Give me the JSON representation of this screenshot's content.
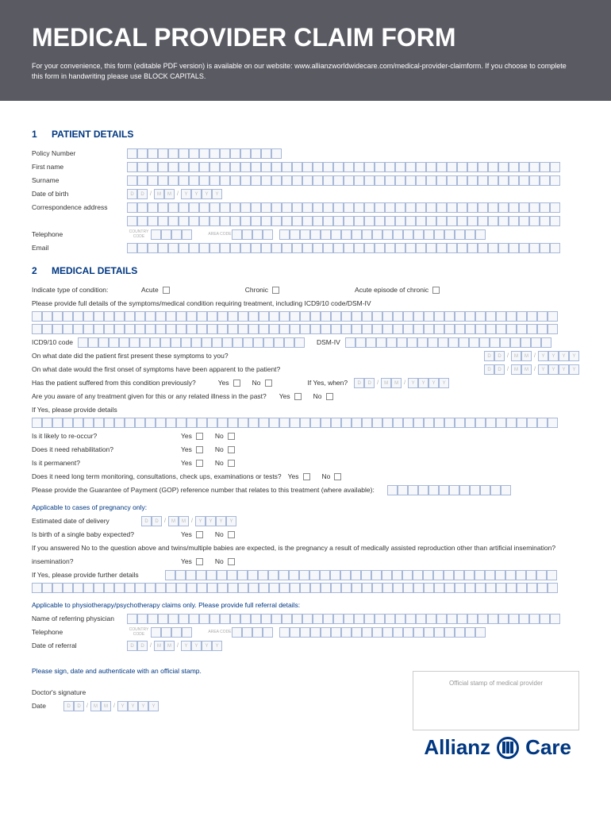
{
  "header": {
    "title": "MEDICAL PROVIDER CLAIM FORM",
    "subtitle": "For your convenience, this form (editable PDF version) is available on our website: www.allianzworldwidecare.com/medical-provider-claimform. If you choose to complete this form in handwriting please use BLOCK CAPITALS."
  },
  "colors": {
    "header_bg": "#5a5a63",
    "brand": "#003781",
    "box_border": "#a8b8d8",
    "box_bg": "#f5f7fb"
  },
  "section1": {
    "num": "1",
    "title": "PATIENT DETAILS",
    "policy_number": "Policy Number",
    "first_name": "First name",
    "surname": "Surname",
    "dob": "Date of birth",
    "address": "Correspondence address",
    "telephone": "Telephone",
    "country_code": "COUNTRY CODE",
    "area_code": "AREA CODE",
    "email": "Email"
  },
  "section2": {
    "num": "2",
    "title": "MEDICAL DETAILS",
    "condition_type": "Indicate type of condition:",
    "acute": "Acute",
    "chronic": "Chronic",
    "acute_chronic": "Acute episode of chronic",
    "symptoms_detail": "Please provide full details of the symptoms/medical condition requiring treatment, including ICD9/10 code/DSM-IV",
    "icd_code": "ICD9/10 code",
    "dsm": "DSM-IV",
    "first_present": "On what date did the patient first present these symptoms to you?",
    "first_onset": "On what date would the first onset of symptoms have been apparent to the patient?",
    "suffered_prev": "Has the patient suffered from this condition previously?",
    "if_yes_when": "If Yes, when?",
    "aware_treatment": "Are you aware of any treatment given for this or any related illness in the past?",
    "if_yes_details": "If Yes, please provide details",
    "reoccur": "Is it likely to re-occur?",
    "rehab": "Does it need rehabilitation?",
    "permanent": "Is it permanent?",
    "monitoring": "Does it need long term monitoring, consultations, check ups, examinations or tests?",
    "gop": "Please provide the Guarantee of Payment (GOP) reference number that relates to this treatment (where available):",
    "yes": "Yes",
    "no": "No"
  },
  "pregnancy": {
    "heading": "Applicable to cases of pregnancy only:",
    "delivery_date": "Estimated date of delivery",
    "single_baby": "Is birth of a single baby expected?",
    "twins_q": "If you answered No to the question above and twins/multiple babies are expected, is the pregnancy a result of medically assisted reproduction other than artificial insemination?",
    "further_details": "If Yes, please provide further details"
  },
  "physio": {
    "heading": "Applicable to physiotherapy/psychotherapy claims only. Please provide full referral details:",
    "physician": "Name of referring physician",
    "telephone": "Telephone",
    "referral_date": "Date of referral"
  },
  "signature": {
    "instruction": "Please sign, date and authenticate with an official stamp.",
    "doctor_sig": "Doctor's signature",
    "date": "Date",
    "stamp": "Official stamp of medical provider"
  },
  "logo": {
    "brand1": "Allianz",
    "brand2": "Care"
  },
  "date_ph": {
    "d": "D",
    "m": "M",
    "y": "Y",
    "sep": "/"
  }
}
